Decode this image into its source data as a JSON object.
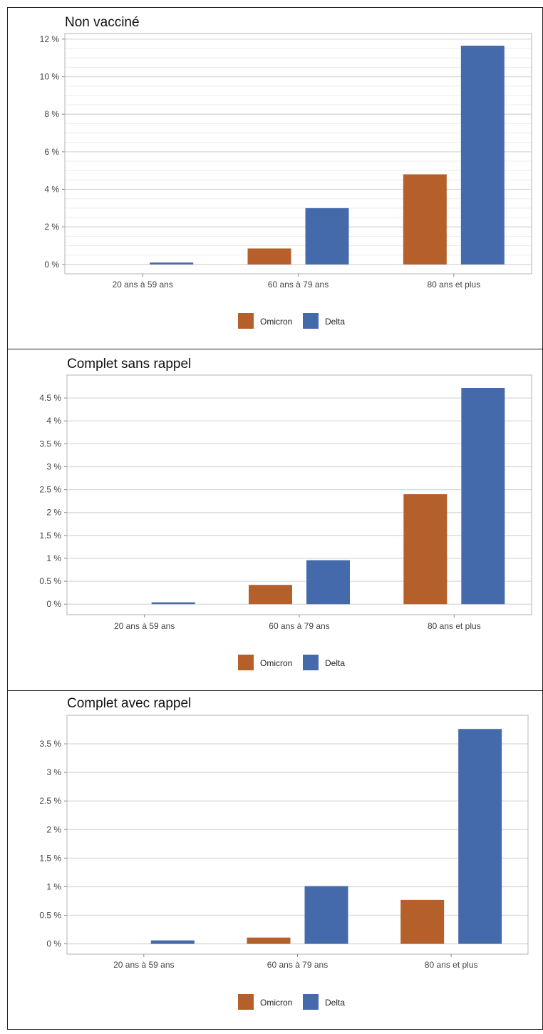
{
  "colors": {
    "omicron": "#b5602a",
    "delta": "#456aab",
    "grid": "#d9d9d9",
    "minor_grid": "#ececec",
    "frame": "#b3b3b3"
  },
  "chart_data": [
    {
      "type": "bar",
      "title": "Non vacciné",
      "categories": [
        "20 ans à 59 ans",
        "60 ans à 79 ans",
        "80 ans et plus"
      ],
      "series": [
        {
          "name": "Omicron",
          "values": [
            0,
            0.85,
            4.8
          ]
        },
        {
          "name": "Delta",
          "values": [
            0.1,
            3.0,
            11.65
          ]
        }
      ],
      "ylim": [
        -0.5,
        12.3
      ],
      "yticks": [
        0,
        2,
        4,
        6,
        8,
        10,
        12
      ],
      "ytick_labels": [
        "0 %",
        "2 %",
        "4 %",
        "6 %",
        "8 %",
        "10 %",
        "12 %"
      ],
      "minor_step": 0.5,
      "legend": "bottom",
      "grid": true
    },
    {
      "type": "bar",
      "title": "Complet sans rappel",
      "categories": [
        "20 ans à 59 ans",
        "60 ans à 79 ans",
        "80 ans et plus"
      ],
      "series": [
        {
          "name": "Omicron",
          "values": [
            0,
            0.42,
            2.4
          ]
        },
        {
          "name": "Delta",
          "values": [
            0.04,
            0.96,
            4.72
          ]
        }
      ],
      "ylim": [
        -0.23,
        5.0
      ],
      "yticks": [
        0,
        0.5,
        1,
        1.5,
        2,
        2.5,
        3,
        3.5,
        4,
        4.5
      ],
      "ytick_labels": [
        "0 %",
        "0.5 %",
        "1 %",
        "1.5 %",
        "2 %",
        "2.5 %",
        "3 %",
        "3.5 %",
        "4 %",
        "4.5 %"
      ],
      "minor_step": 0,
      "legend": "bottom",
      "grid": true
    },
    {
      "type": "bar",
      "title": "Complet avec rappel",
      "categories": [
        "20 ans à 59 ans",
        "60 ans à 79 ans",
        "80 ans et plus"
      ],
      "series": [
        {
          "name": "Omicron",
          "values": [
            0,
            0.11,
            0.77
          ]
        },
        {
          "name": "Delta",
          "values": [
            0.06,
            1.01,
            3.76
          ]
        }
      ],
      "ylim": [
        -0.18,
        4.0
      ],
      "yticks": [
        0,
        0.5,
        1,
        1.5,
        2,
        2.5,
        3,
        3.5
      ],
      "ytick_labels": [
        "0 %",
        "0.5 %",
        "1 %",
        "1.5 %",
        "2 %",
        "2.5 %",
        "3 %",
        "3.5 %"
      ],
      "minor_step": 0,
      "legend": "bottom",
      "grid": true
    }
  ]
}
